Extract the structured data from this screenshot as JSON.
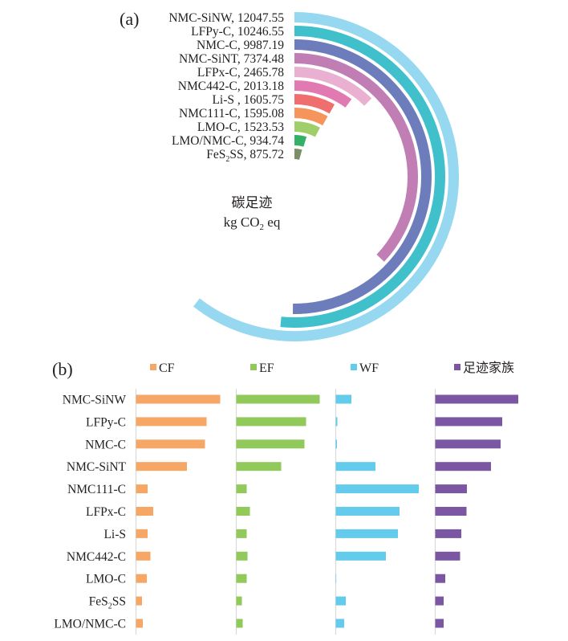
{
  "chart_data": [
    {
      "type": "radial-bar",
      "panel_label": "(a)",
      "center_title": "碳足迹",
      "center_unit": {
        "prefix": "kg CO",
        "sub": "2",
        "suffix": " eq"
      },
      "full_circle_value": 19900,
      "series": [
        {
          "name": "NMC-SiNW",
          "value_text": "12047.55",
          "value": 12047.55,
          "color": "#97D8F1",
          "label_parts": [
            [
              "NMC-SiNW, 12047.55",
              ""
            ]
          ]
        },
        {
          "name": "LFPy-C",
          "value_text": "10246.55",
          "value": 10246.55,
          "color": "#40C0CB",
          "label_parts": [
            [
              "LFPy-C, 10246.55",
              ""
            ]
          ]
        },
        {
          "name": "NMC-C",
          "value_text": "9987.19",
          "value": 9987.19,
          "color": "#6D7CBB",
          "label_parts": [
            [
              "NMC-C, 9987.19",
              ""
            ]
          ]
        },
        {
          "name": "NMC-SiNT",
          "value_text": "7374.48",
          "value": 7374.48,
          "color": "#C07EB4",
          "label_parts": [
            [
              "NMC-SiNT, 7374.48",
              ""
            ]
          ]
        },
        {
          "name": "LFPx-C",
          "value_text": "2465.78",
          "value": 2465.78,
          "color": "#EAB0D1",
          "label_parts": [
            [
              "LFPx-C, 2465.78",
              ""
            ]
          ]
        },
        {
          "name": "NMC442-C",
          "value_text": "2013.18",
          "value": 2013.18,
          "color": "#E27AB2",
          "label_parts": [
            [
              "NMC442-C, 2013.18",
              ""
            ]
          ]
        },
        {
          "name": "Li-S ",
          "value_text": "1605.75",
          "value": 1605.75,
          "color": "#EF6E6E",
          "label_parts": [
            [
              "Li-S , 1605.75",
              ""
            ]
          ]
        },
        {
          "name": "NMC111-C",
          "value_text": "1595.08",
          "value": 1595.08,
          "color": "#F5955B",
          "label_parts": [
            [
              "NMC111-C, 1595.08",
              ""
            ]
          ]
        },
        {
          "name": "LMO-C",
          "value_text": "1523.53",
          "value": 1523.53,
          "color": "#A0CF6A",
          "label_parts": [
            [
              "LMO-C, 1523.53",
              ""
            ]
          ]
        },
        {
          "name": "LMO/NMC-C",
          "value_text": "934.74",
          "value": 934.74,
          "color": "#34B167",
          "label_parts": [
            [
              "LMO/NMC-C, 934.74",
              ""
            ]
          ]
        },
        {
          "name": "FeS2SS",
          "value_text": "875.72",
          "value": 875.72,
          "color": "#7A9064",
          "label_parts": [
            [
              "FeS",
              "2",
              "SS, 875.72"
            ]
          ]
        }
      ]
    },
    {
      "type": "bar",
      "orientation": "horizontal",
      "panel_label": "(b)",
      "value_scale": "relative (no axis ticks shown)",
      "xlim": [
        0,
        120
      ],
      "categories": [
        "NMC-SiNW",
        "LFPy-C",
        "NMC-C",
        "NMC-SiNT",
        "NMC111-C",
        "LFPx-C",
        "Li-S",
        "NMC442-C",
        "LMO-C",
        "FeS2SS",
        "LMO/NMC-C"
      ],
      "category_parts": [
        [
          "NMC-SiNW"
        ],
        [
          "LFPy-C"
        ],
        [
          "NMC-C"
        ],
        [
          "NMC-SiNT"
        ],
        [
          "NMC111-C"
        ],
        [
          "LFPx-C"
        ],
        [
          "Li-S"
        ],
        [
          "NMC442-C"
        ],
        [
          "LMO-C"
        ],
        [
          "FeS",
          "2",
          "SS"
        ],
        [
          "LMO/NMC-C"
        ]
      ],
      "legend_position": "top",
      "series": [
        {
          "name": "CF",
          "color": "#F7A765",
          "values": [
            105,
            88,
            86,
            63.5,
            14.5,
            21.5,
            14.5,
            18,
            13.5,
            7.5,
            8.5
          ]
        },
        {
          "name": "EF",
          "color": "#92C95B",
          "values": [
            104,
            87,
            85,
            56,
            13,
            17,
            13,
            14,
            13,
            7,
            8
          ]
        },
        {
          "name": "WF",
          "color": "#63CBEC",
          "values": [
            19.5,
            2,
            1.5,
            49.5,
            103.5,
            79.5,
            77.5,
            62.5,
            0.5,
            12.5,
            10.5
          ]
        },
        {
          "name": "足迹家族",
          "color": "#7A56A3",
          "values": [
            103.5,
            83.5,
            81.5,
            69.5,
            39.5,
            39,
            32.5,
            31,
            12.5,
            10.5,
            10.5
          ]
        }
      ]
    }
  ]
}
